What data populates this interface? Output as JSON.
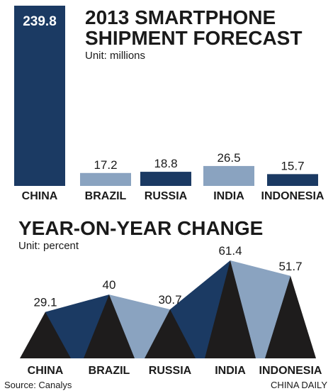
{
  "colors": {
    "dark_navy": "#1b3a63",
    "light_steel": "#8aa3c0",
    "black": "#1e1c1c",
    "text": "#1a1a1a"
  },
  "chart_data": [
    {
      "type": "bar",
      "title_lines": [
        "2013 SMARTPHONE",
        "SHIPMENT FORECAST"
      ],
      "subtitle": "Unit: millions",
      "categories": [
        "CHINA",
        "BRAZIL",
        "RUSSIA",
        "INDIA",
        "INDONESIA"
      ],
      "values": [
        239.8,
        17.2,
        18.8,
        26.5,
        15.7
      ],
      "value_labels": [
        "239.8",
        "17.2",
        "18.8",
        "26.5",
        "15.7"
      ],
      "bar_colors": [
        "#1b3a63",
        "#8aa3c0",
        "#1b3a63",
        "#8aa3c0",
        "#1b3a63"
      ],
      "ylim": [
        0,
        239.8
      ]
    },
    {
      "type": "area",
      "title": "YEAR-ON-YEAR CHANGE",
      "subtitle": "Unit: percent",
      "categories": [
        "CHINA",
        "BRAZIL",
        "RUSSIA",
        "INDIA",
        "INDONESIA"
      ],
      "values": [
        29.1,
        40,
        30.7,
        61.4,
        51.7
      ],
      "value_labels": [
        "29.1",
        "40",
        "30.7",
        "61.4",
        "51.7"
      ],
      "band_colors": [
        "#1b3a63",
        "#8aa3c0",
        "#1b3a63",
        "#8aa3c0"
      ],
      "peak_color": "#1e1c1c",
      "ylim": [
        0,
        61.4
      ]
    }
  ],
  "footer": {
    "source": "Source: Canalys",
    "credit": "CHINA DAILY"
  }
}
